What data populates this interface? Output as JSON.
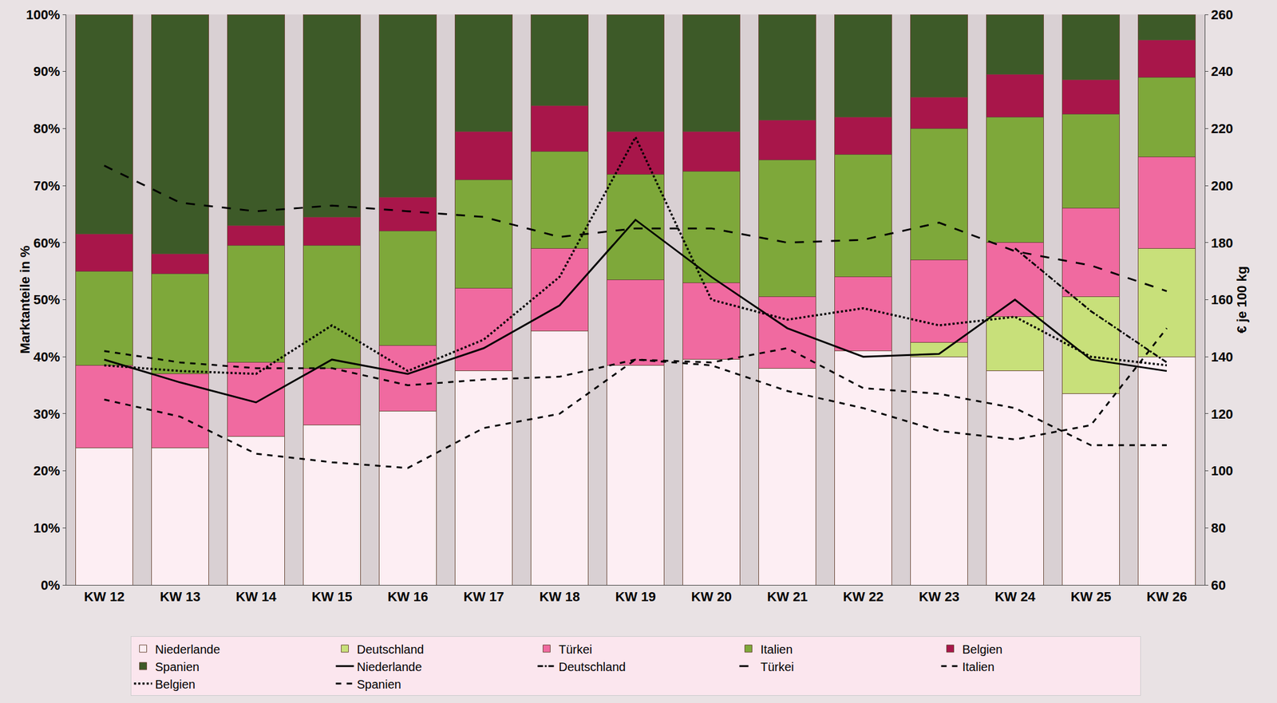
{
  "chart_data": {
    "type": "bar",
    "stacked": true,
    "grid": false,
    "legend": "bottom",
    "y_label": "Marktanteile in %",
    "y2_label": "€ je 100 kg",
    "categories": [
      "KW 12",
      "KW 13",
      "KW 14",
      "KW 15",
      "KW 16",
      "KW 17",
      "KW 18",
      "KW 19",
      "KW 20",
      "KW 21",
      "KW 22",
      "KW 23",
      "KW 24",
      "KW 25",
      "KW 26"
    ],
    "ylim": [
      0,
      100
    ],
    "yticks": [
      {
        "value": 0,
        "label": "0%"
      },
      {
        "value": 10,
        "label": "10%"
      },
      {
        "value": 20,
        "label": "20%"
      },
      {
        "value": 30,
        "label": "30%"
      },
      {
        "value": 40,
        "label": "40%"
      },
      {
        "value": 50,
        "label": "50%"
      },
      {
        "value": 60,
        "label": "60%"
      },
      {
        "value": 70,
        "label": "70%"
      },
      {
        "value": 80,
        "label": "80%"
      },
      {
        "value": 90,
        "label": "90%"
      },
      {
        "value": 100,
        "label": "100%"
      }
    ],
    "y2lim": [
      60,
      260
    ],
    "y2ticks": [
      60,
      80,
      100,
      120,
      140,
      160,
      180,
      200,
      220,
      240,
      260
    ],
    "series": [
      {
        "name": "Niederlande",
        "type": "bar",
        "color": "#fdeef3",
        "values": [
          24,
          24,
          26,
          28,
          30.5,
          37.5,
          44.5,
          38.5,
          39.5,
          38,
          41,
          40,
          37.5,
          33.5,
          40
        ]
      },
      {
        "name": "Deutschland",
        "type": "bar",
        "color": "#c8e07a",
        "values": [
          0,
          0,
          0,
          0,
          0,
          0,
          0,
          0,
          0,
          0,
          0,
          2.5,
          9.5,
          17,
          19
        ]
      },
      {
        "name": "Türkei",
        "type": "bar",
        "color": "#f06aa0",
        "values": [
          14.5,
          13,
          13,
          10,
          11.5,
          14.5,
          14.5,
          15,
          13.5,
          12.5,
          13,
          14.5,
          13,
          15.5,
          16
        ]
      },
      {
        "name": "Italien",
        "type": "bar",
        "color": "#7ea83a",
        "values": [
          16.5,
          17.5,
          20.5,
          21.5,
          20,
          19,
          17,
          18.5,
          19.5,
          24,
          21.5,
          23,
          22,
          16.5,
          14
        ]
      },
      {
        "name": "Belgien",
        "type": "bar",
        "color": "#a8164a",
        "values": [
          6.5,
          3.5,
          3.5,
          5,
          6,
          8.5,
          8,
          7.5,
          7,
          7,
          6.5,
          5.5,
          7.5,
          6,
          6.5
        ]
      },
      {
        "name": "Spanien",
        "type": "bar",
        "color": "#3d5a28",
        "values": [
          38.5,
          42,
          37,
          35.5,
          32,
          20.5,
          16,
          20.5,
          20.5,
          18.5,
          18,
          14.5,
          10.5,
          11.5,
          4.5
        ]
      },
      {
        "name": "Niederlande",
        "type": "line",
        "axis": "y2",
        "color": "#000000",
        "line_style": "solid",
        "values": [
          139,
          131,
          124,
          139,
          134,
          143,
          158,
          188,
          168,
          150,
          140,
          141,
          160,
          139,
          135
        ]
      },
      {
        "name": "Deutschland",
        "type": "line",
        "axis": "y2",
        "color": "#000000",
        "line_style": "dashdot",
        "values": [
          null,
          null,
          null,
          null,
          null,
          null,
          null,
          null,
          null,
          null,
          null,
          null,
          178,
          156,
          138
        ]
      },
      {
        "name": "Türkei",
        "type": "line",
        "axis": "y2",
        "color": "#000000",
        "line_style": "longdash",
        "values": [
          207,
          194,
          191,
          193,
          191,
          189,
          182,
          185,
          185,
          180,
          181,
          187,
          177,
          172,
          163
        ]
      },
      {
        "name": "Italien",
        "type": "line",
        "axis": "y2",
        "color": "#000000",
        "line_style": "dash",
        "values": [
          142,
          138,
          136,
          136,
          130,
          132,
          133,
          139,
          138,
          143,
          129,
          127,
          122,
          109,
          109
        ]
      },
      {
        "name": "Belgien",
        "type": "line",
        "axis": "y2",
        "color": "#000000",
        "line_style": "dot",
        "values": [
          137,
          135,
          134,
          151,
          135,
          146,
          168,
          217,
          160,
          153,
          157,
          151,
          154,
          140,
          137
        ]
      },
      {
        "name": "Spanien",
        "type": "line",
        "axis": "y2",
        "color": "#000000",
        "line_style": "dash",
        "values": [
          125,
          119,
          106,
          103,
          101,
          115,
          120,
          139,
          137,
          128,
          122,
          114,
          111,
          116,
          150
        ]
      }
    ]
  }
}
